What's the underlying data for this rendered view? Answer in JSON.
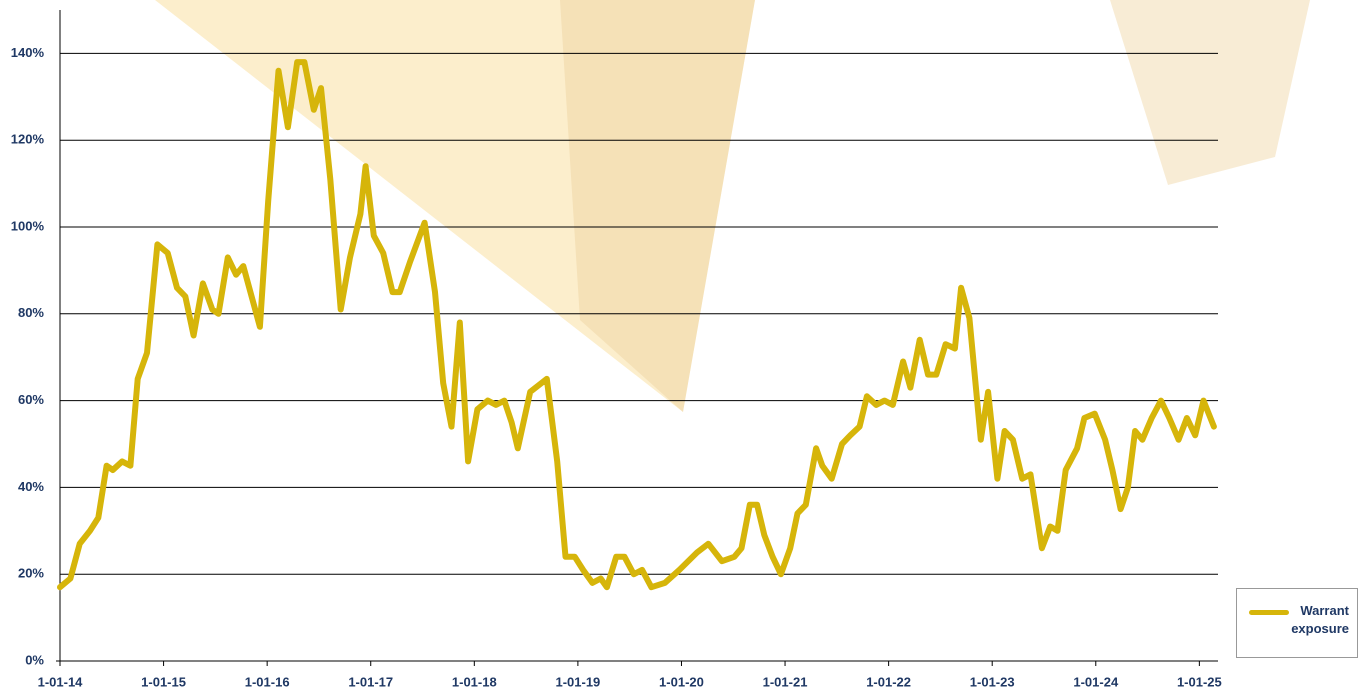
{
  "chart_data": {
    "type": "line",
    "x": [
      2014.0,
      2014.1,
      2014.19,
      2014.29,
      2014.37,
      2014.45,
      2014.51,
      2014.6,
      2014.68,
      2014.75,
      2014.84,
      2014.94,
      2015.04,
      2015.13,
      2015.21,
      2015.29,
      2015.38,
      2015.47,
      2015.53,
      2015.62,
      2015.7,
      2015.77,
      2015.85,
      2015.93,
      2016.01,
      2016.11,
      2016.2,
      2016.29,
      2016.36,
      2016.45,
      2016.52,
      2016.61,
      2016.71,
      2016.8,
      2016.9,
      2016.95,
      2017.03,
      2017.12,
      2017.21,
      2017.28,
      2017.38,
      2017.52,
      2017.62,
      2017.7,
      2017.78,
      2017.86,
      2017.94,
      2018.03,
      2018.13,
      2018.21,
      2018.29,
      2018.36,
      2018.42,
      2018.54,
      2018.7,
      2018.8,
      2018.88,
      2018.97,
      2019.05,
      2019.14,
      2019.22,
      2019.28,
      2019.37,
      2019.45,
      2019.54,
      2019.62,
      2019.71,
      2019.84,
      2019.98,
      2020.15,
      2020.26,
      2020.39,
      2020.51,
      2020.58,
      2020.66,
      2020.73,
      2020.8,
      2020.88,
      2020.96,
      2021.05,
      2021.12,
      2021.2,
      2021.3,
      2021.36,
      2021.45,
      2021.55,
      2021.63,
      2021.72,
      2021.79,
      2021.88,
      2021.96,
      2022.04,
      2022.14,
      2022.21,
      2022.3,
      2022.38,
      2022.46,
      2022.55,
      2022.64,
      2022.7,
      2022.78,
      2022.89,
      2022.96,
      2023.05,
      2023.12,
      2023.2,
      2023.29,
      2023.37,
      2023.48,
      2023.56,
      2023.63,
      2023.71,
      2023.82,
      2023.89,
      2023.99,
      2024.09,
      2024.16,
      2024.24,
      2024.31,
      2024.38,
      2024.45,
      2024.54,
      2024.63,
      2024.71,
      2024.8,
      2024.88,
      2024.96,
      2025.04,
      2025.14
    ],
    "series": [
      {
        "name": "Warrant exposure",
        "color": "#d6b50a",
        "values": [
          17,
          19,
          27,
          30,
          33,
          45,
          44,
          46,
          45,
          65,
          71,
          96,
          94,
          86,
          84,
          75,
          87,
          81,
          80,
          93,
          89,
          91,
          84,
          77,
          106,
          136,
          123,
          138,
          138,
          127,
          132,
          111,
          81,
          93,
          103,
          114,
          98,
          94,
          85,
          85,
          92,
          101,
          85,
          64,
          54,
          78,
          46,
          58,
          60,
          59,
          60,
          55,
          49,
          62,
          65,
          46,
          24,
          24,
          21,
          18,
          19,
          17,
          24,
          24,
          20,
          21,
          17,
          18,
          21,
          25,
          27,
          23,
          24,
          26,
          36,
          36,
          29,
          24,
          20,
          26,
          34,
          36,
          49,
          45,
          42,
          50,
          52,
          54,
          61,
          59,
          60,
          59,
          69,
          63,
          74,
          66,
          66,
          73,
          72,
          86,
          79,
          51,
          62,
          42,
          53,
          51,
          42,
          43,
          26,
          31,
          30,
          44,
          49,
          56,
          57,
          51,
          44,
          35,
          40,
          53,
          51,
          56,
          60,
          56,
          51,
          56,
          52,
          60,
          54
        ]
      }
    ],
    "xlim": [
      2014,
      2025.18
    ],
    "xticks": [
      {
        "value": 2014,
        "label": "1-01-14"
      },
      {
        "value": 2015,
        "label": "1-01-15"
      },
      {
        "value": 2016,
        "label": "1-01-16"
      },
      {
        "value": 2017,
        "label": "1-01-17"
      },
      {
        "value": 2018,
        "label": "1-01-18"
      },
      {
        "value": 2019,
        "label": "1-01-19"
      },
      {
        "value": 2020,
        "label": "1-01-20"
      },
      {
        "value": 2021,
        "label": "1-01-21"
      },
      {
        "value": 2022,
        "label": "1-01-22"
      },
      {
        "value": 2023,
        "label": "1-01-23"
      },
      {
        "value": 2024,
        "label": "1-01-24"
      },
      {
        "value": 2025,
        "label": "1-01-25"
      }
    ],
    "ylim": [
      0,
      150
    ],
    "yticks": [
      {
        "value": 0,
        "label": "0%"
      },
      {
        "value": 20,
        "label": "20%"
      },
      {
        "value": 40,
        "label": "40%"
      },
      {
        "value": 60,
        "label": "60%"
      },
      {
        "value": 80,
        "label": "80%"
      },
      {
        "value": 100,
        "label": "100%"
      },
      {
        "value": 120,
        "label": "120%"
      },
      {
        "value": 140,
        "label": "140%"
      }
    ],
    "grid": true,
    "legend": "bottom-right"
  }
}
